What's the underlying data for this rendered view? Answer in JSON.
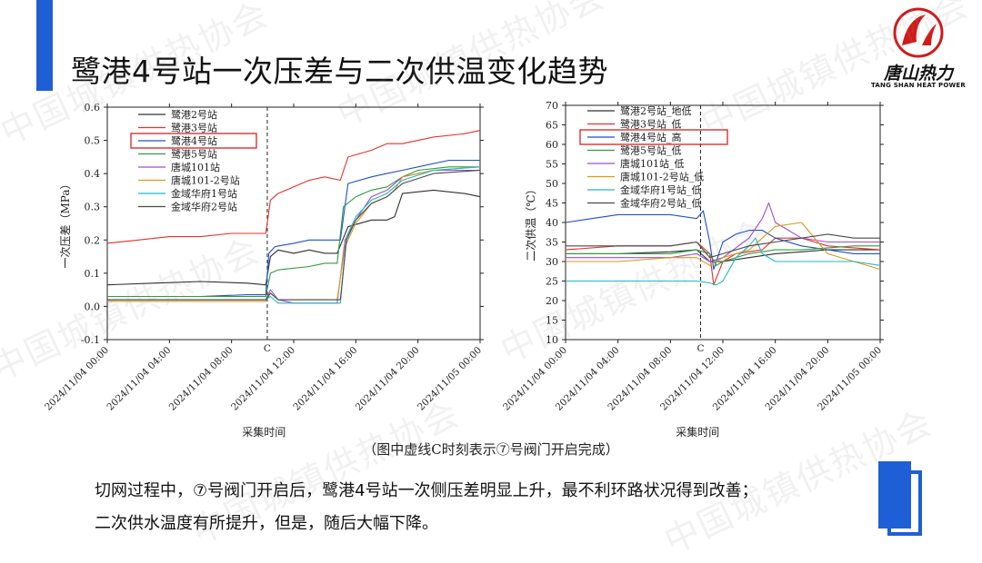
{
  "title": "鹭港4号站一次压差与二次供温变化趋势",
  "logo": {
    "brand": "唐山热力",
    "subtitle": "TANG SHAN HEAT POWER"
  },
  "watermark": "中国城镇供热协会",
  "caption": "（图中虚线C时刻表示⑦号阀门开启完成）",
  "body": {
    "line1": "切网过程中，⑦号阀门开启后，鹭港4号站一次侧压差明显上升，最不利环路状况得到改善；",
    "line2": "二次供水温度有所提升，但是，随后大幅下降。"
  },
  "colors": {
    "accent": "#1f5fd6",
    "highlight_box": "#d62020"
  },
  "chart_data": [
    {
      "type": "line",
      "xlabel": "采集时间",
      "ylabel": "一次压差（MPa）",
      "ylim": [
        -0.1,
        0.6
      ],
      "yticks": [
        -0.1,
        0.0,
        0.1,
        0.2,
        0.3,
        0.4,
        0.5,
        0.6
      ],
      "xlim": [
        0,
        24
      ],
      "xticks": [
        "2024/11/04 00:00",
        "2024/11/04 04:00",
        "2024/11/04 08:00",
        "2024/11/04 12:00",
        "2024/11/04 16:00",
        "2024/11/04 20:00",
        "2024/11/05 00:00"
      ],
      "vline": {
        "x": 10.3,
        "label": "C"
      },
      "legend_position": "top-left",
      "highlight": "鹭港4号站",
      "series": [
        {
          "name": "鹭港2号站",
          "color": "#303030",
          "points": [
            [
              0,
              0.065
            ],
            [
              3,
              0.07
            ],
            [
              6,
              0.075
            ],
            [
              9,
              0.07
            ],
            [
              10.2,
              0.065
            ],
            [
              10.5,
              0.15
            ],
            [
              11,
              0.17
            ],
            [
              12,
              0.16
            ],
            [
              13,
              0.17
            ],
            [
              14,
              0.16
            ],
            [
              14.8,
              0.16
            ],
            [
              15.5,
              0.24
            ],
            [
              17,
              0.26
            ],
            [
              18,
              0.26
            ],
            [
              18.5,
              0.27
            ],
            [
              19,
              0.34
            ],
            [
              21,
              0.35
            ],
            [
              23,
              0.34
            ],
            [
              24,
              0.33
            ]
          ]
        },
        {
          "name": "鹭港3号站",
          "color": "#e8302a",
          "points": [
            [
              0,
              0.19
            ],
            [
              2,
              0.2
            ],
            [
              4,
              0.21
            ],
            [
              6,
              0.21
            ],
            [
              8,
              0.22
            ],
            [
              10.2,
              0.22
            ],
            [
              10.5,
              0.32
            ],
            [
              11,
              0.34
            ],
            [
              12,
              0.36
            ],
            [
              13,
              0.38
            ],
            [
              14,
              0.39
            ],
            [
              15,
              0.38
            ],
            [
              15.5,
              0.45
            ],
            [
              17,
              0.47
            ],
            [
              18,
              0.49
            ],
            [
              19,
              0.49
            ],
            [
              21,
              0.51
            ],
            [
              23,
              0.52
            ],
            [
              24,
              0.53
            ]
          ]
        },
        {
          "name": "鹭港4号站",
          "color": "#1f4fd0",
          "points": [
            [
              0,
              0.03
            ],
            [
              3,
              0.03
            ],
            [
              6,
              0.03
            ],
            [
              9,
              0.035
            ],
            [
              10.2,
              0.035
            ],
            [
              10.4,
              0.16
            ],
            [
              10.8,
              0.18
            ],
            [
              12,
              0.19
            ],
            [
              13,
              0.2
            ],
            [
              14,
              0.2
            ],
            [
              15,
              0.2
            ],
            [
              15.5,
              0.37
            ],
            [
              17,
              0.39
            ],
            [
              18,
              0.4
            ],
            [
              19,
              0.41
            ],
            [
              20,
              0.42
            ],
            [
              22,
              0.44
            ],
            [
              24,
              0.44
            ]
          ]
        },
        {
          "name": "鹭港5号站",
          "color": "#2e9e3a",
          "points": [
            [
              0,
              0.03
            ],
            [
              5,
              0.03
            ],
            [
              9,
              0.03
            ],
            [
              10.2,
              0.03
            ],
            [
              10.5,
              0.1
            ],
            [
              11,
              0.11
            ],
            [
              13,
              0.12
            ],
            [
              14,
              0.13
            ],
            [
              14.8,
              0.13
            ],
            [
              15.2,
              0.3
            ],
            [
              16,
              0.33
            ],
            [
              17,
              0.35
            ],
            [
              18,
              0.36
            ],
            [
              19,
              0.39
            ],
            [
              20,
              0.41
            ],
            [
              22,
              0.42
            ],
            [
              24,
              0.42
            ]
          ]
        },
        {
          "name": "唐城101站",
          "color": "#9a4fd0",
          "points": [
            [
              0,
              0.02
            ],
            [
              5,
              0.02
            ],
            [
              10.2,
              0.02
            ],
            [
              10.5,
              0.05
            ],
            [
              11,
              0.02
            ],
            [
              12,
              0.01
            ],
            [
              14,
              0.01
            ],
            [
              14.8,
              0.01
            ],
            [
              15.3,
              0.2
            ],
            [
              16,
              0.26
            ],
            [
              17,
              0.33
            ],
            [
              18,
              0.35
            ],
            [
              19,
              0.39
            ],
            [
              21,
              0.41
            ],
            [
              24,
              0.41
            ]
          ]
        },
        {
          "name": "唐城101-2号站",
          "color": "#d89a1c",
          "points": [
            [
              0,
              0.015
            ],
            [
              5,
              0.015
            ],
            [
              10.2,
              0.015
            ],
            [
              10.5,
              0.04
            ],
            [
              11,
              0.02
            ],
            [
              14,
              0.02
            ],
            [
              14.8,
              0.02
            ],
            [
              15.3,
              0.18
            ],
            [
              16,
              0.25
            ],
            [
              17,
              0.31
            ],
            [
              18,
              0.33
            ],
            [
              18.5,
              0.35
            ],
            [
              19,
              0.39
            ],
            [
              21,
              0.41
            ],
            [
              24,
              0.42
            ]
          ]
        },
        {
          "name": "金域华府1号站",
          "color": "#22b8c8",
          "points": [
            [
              0,
              0.02
            ],
            [
              5,
              0.02
            ],
            [
              10.2,
              0.02
            ],
            [
              10.5,
              0.03
            ],
            [
              11,
              0.01
            ],
            [
              14,
              0.01
            ],
            [
              15,
              0.01
            ],
            [
              15.4,
              0.21
            ],
            [
              16,
              0.27
            ],
            [
              17,
              0.32
            ],
            [
              18,
              0.34
            ],
            [
              19,
              0.38
            ],
            [
              21,
              0.41
            ],
            [
              24,
              0.42
            ]
          ]
        },
        {
          "name": "金域华府2号站",
          "color": "#4a4a4a",
          "points": [
            [
              0,
              0.02
            ],
            [
              5,
              0.02
            ],
            [
              10.2,
              0.02
            ],
            [
              10.5,
              0.04
            ],
            [
              11,
              0.02
            ],
            [
              14,
              0.02
            ],
            [
              15,
              0.02
            ],
            [
              15.4,
              0.2
            ],
            [
              16,
              0.26
            ],
            [
              17,
              0.31
            ],
            [
              18,
              0.33
            ],
            [
              19,
              0.37
            ],
            [
              21,
              0.4
            ],
            [
              24,
              0.41
            ]
          ]
        }
      ]
    },
    {
      "type": "line",
      "xlabel": "采集时间",
      "ylabel": "二次供温（℃）",
      "ylim": [
        10,
        70
      ],
      "yticks": [
        10,
        15,
        20,
        25,
        30,
        35,
        40,
        45,
        50,
        55,
        60,
        65,
        70
      ],
      "xlim": [
        0,
        24
      ],
      "xticks": [
        "2024/11/04 00:00",
        "2024/11/04 04:00",
        "2024/11/04 08:00",
        "2024/11/04 12:00",
        "2024/11/04 16:00",
        "2024/11/04 20:00",
        "2024/11/05 00:00"
      ],
      "vline": {
        "x": 10.3,
        "label": "C"
      },
      "legend_position": "top-left",
      "highlight": "鹭港4号站_高",
      "series": [
        {
          "name": "鹭港2号站_地低",
          "color": "#303030",
          "points": [
            [
              0,
              32
            ],
            [
              4,
              32
            ],
            [
              8,
              32.5
            ],
            [
              10,
              33
            ],
            [
              11,
              30
            ],
            [
              12,
              30
            ],
            [
              14,
              31
            ],
            [
              16,
              32
            ],
            [
              18,
              32.5
            ],
            [
              20,
              33
            ],
            [
              24,
              33
            ]
          ]
        },
        {
          "name": "鹭港3号站_低",
          "color": "#e8302a",
          "points": [
            [
              0,
              33
            ],
            [
              4,
              34
            ],
            [
              8,
              34
            ],
            [
              10,
              35
            ],
            [
              11,
              32
            ],
            [
              11.3,
              24
            ],
            [
              12,
              30
            ],
            [
              13,
              32
            ],
            [
              15,
              33
            ],
            [
              16,
              36
            ],
            [
              18,
              36
            ],
            [
              20,
              34
            ],
            [
              24,
              33
            ]
          ]
        },
        {
          "name": "鹭港4号站_高",
          "color": "#1f4fd0",
          "points": [
            [
              0,
              40
            ],
            [
              2,
              41
            ],
            [
              4,
              42
            ],
            [
              6,
              42
            ],
            [
              8,
              42
            ],
            [
              10,
              41
            ],
            [
              10.5,
              43
            ],
            [
              11,
              35
            ],
            [
              11.3,
              28
            ],
            [
              12,
              35
            ],
            [
              13,
              37
            ],
            [
              14,
              38
            ],
            [
              15,
              38
            ],
            [
              16,
              36
            ],
            [
              18,
              34
            ],
            [
              20,
              33
            ],
            [
              22,
              32
            ],
            [
              24,
              32
            ]
          ]
        },
        {
          "name": "鹭港5号站_低",
          "color": "#2e9e3a",
          "points": [
            [
              0,
              32
            ],
            [
              4,
              32
            ],
            [
              8,
              32
            ],
            [
              10,
              33
            ],
            [
              11,
              32
            ],
            [
              11.5,
              29
            ],
            [
              12,
              30
            ],
            [
              14,
              32
            ],
            [
              16,
              33
            ],
            [
              18,
              33
            ],
            [
              22,
              34
            ],
            [
              24,
              34
            ]
          ]
        },
        {
          "name": "唐城101站_低",
          "color": "#9a4fd0",
          "points": [
            [
              0,
              31
            ],
            [
              4,
              31
            ],
            [
              8,
              31
            ],
            [
              10,
              32
            ],
            [
              11,
              30
            ],
            [
              12,
              31
            ],
            [
              14,
              36
            ],
            [
              15,
              41
            ],
            [
              15.5,
              45
            ],
            [
              16,
              40
            ],
            [
              18,
              36
            ],
            [
              20,
              35
            ],
            [
              24,
              35
            ]
          ]
        },
        {
          "name": "唐城101-2号站_低",
          "color": "#d89a1c",
          "points": [
            [
              0,
              30
            ],
            [
              4,
              30
            ],
            [
              8,
              31
            ],
            [
              10,
              31
            ],
            [
              11,
              29
            ],
            [
              12,
              31
            ],
            [
              14,
              33
            ],
            [
              15,
              36
            ],
            [
              16,
              39
            ],
            [
              18,
              40
            ],
            [
              20,
              32
            ],
            [
              22,
              30
            ],
            [
              24,
              28
            ]
          ]
        },
        {
          "name": "金域华府1号站_低",
          "color": "#22b8c8",
          "points": [
            [
              0,
              25
            ],
            [
              4,
              25
            ],
            [
              8,
              25
            ],
            [
              10,
              25
            ],
            [
              11,
              24.5
            ],
            [
              11.5,
              24
            ],
            [
              12,
              25
            ],
            [
              13,
              31
            ],
            [
              14,
              34
            ],
            [
              14.5,
              36
            ],
            [
              15,
              32
            ],
            [
              16,
              30
            ],
            [
              18,
              30
            ],
            [
              22,
              30
            ],
            [
              24,
              29
            ]
          ]
        },
        {
          "name": "金域华府2号站_低",
          "color": "#4a4a4a",
          "points": [
            [
              0,
              34
            ],
            [
              4,
              34
            ],
            [
              8,
              34
            ],
            [
              10,
              35
            ],
            [
              11,
              31
            ],
            [
              12,
              32
            ],
            [
              14,
              34
            ],
            [
              16,
              35
            ],
            [
              18,
              36
            ],
            [
              20,
              37
            ],
            [
              22,
              36
            ],
            [
              24,
              36
            ]
          ]
        }
      ]
    }
  ]
}
